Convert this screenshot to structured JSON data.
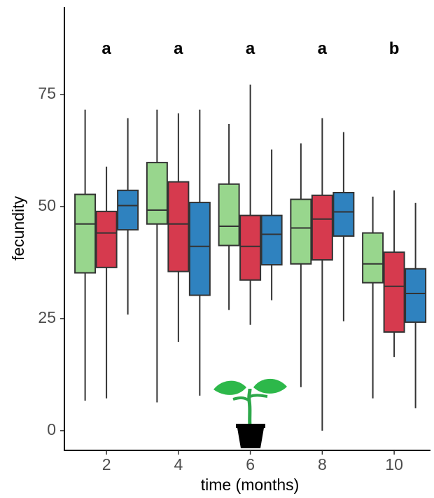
{
  "chart_data": {
    "type": "box",
    "xlabel": "time (months)",
    "ylabel": "fecundity",
    "x": [
      2,
      4,
      6,
      8,
      10
    ],
    "series": [
      {
        "color": "#98d68d",
        "min": [
          6.7,
          6.3,
          26.9,
          9.7,
          7.2
        ],
        "q1": [
          35.2,
          46.1,
          41.3,
          37.2,
          33
        ],
        "median": [
          46.1,
          49.2,
          45.6,
          45.2,
          37.2
        ],
        "q3": [
          52.7,
          59.8,
          55,
          51.6,
          44.1
        ],
        "max": [
          71.6,
          71.6,
          68.4,
          64.1,
          52.2
        ]
      },
      {
        "color": "#d63a4e",
        "min": [
          7.2,
          19.8,
          23.6,
          0,
          16.4
        ],
        "q1": [
          36.4,
          35.5,
          33.6,
          38.1,
          22
        ],
        "median": [
          44.1,
          46.1,
          41.1,
          47.2,
          32.2
        ],
        "q3": [
          48.9,
          55.5,
          48,
          52.5,
          39.8
        ],
        "max": [
          58.9,
          70.8,
          77.2,
          69.7,
          53.6
        ]
      },
      {
        "color": "#2f82bf",
        "min": [
          25.9,
          7.8,
          29.1,
          24.4,
          5
        ],
        "q1": [
          44.8,
          30.2,
          37,
          43.4,
          24.2
        ],
        "median": [
          50.2,
          41.1,
          43.8,
          48.8,
          30.6
        ],
        "q3": [
          53.6,
          50.9,
          48,
          53.1,
          36.1
        ],
        "max": [
          69.7,
          71.6,
          62.7,
          66.6,
          50.8
        ]
      }
    ],
    "annotations": [
      {
        "x": 2,
        "y": 85,
        "text": "a"
      },
      {
        "x": 4,
        "y": 85,
        "text": "a"
      },
      {
        "x": 6,
        "y": 85,
        "text": "a"
      },
      {
        "x": 8,
        "y": 85,
        "text": "a"
      },
      {
        "x": 10,
        "y": 85,
        "text": "b"
      }
    ],
    "xlim": [
      0.83,
      11.01
    ],
    "ylim": [
      -4.4,
      94.5
    ],
    "xticks": [
      2,
      4,
      6,
      8,
      10
    ],
    "yticks": [
      0,
      25,
      50,
      75
    ],
    "grid": false
  }
}
